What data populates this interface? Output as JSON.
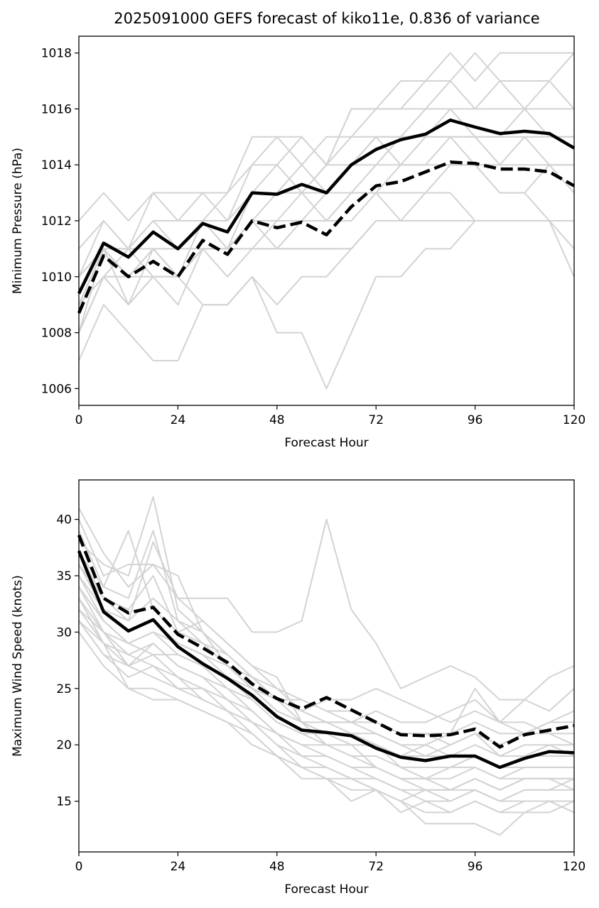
{
  "title": "2025091000 GEFS forecast of kiko11e, 0.836 of variance",
  "colors": {
    "member": "#d3d3d3",
    "mean": "#000000",
    "background": "#ffffff"
  },
  "chart_data": [
    {
      "type": "line",
      "xlabel": "Forecast Hour",
      "ylabel": "Minimum Pressure (hPa)",
      "xlim": [
        0,
        120
      ],
      "ylim": [
        1005.4,
        1018.6
      ],
      "xticks": [
        0,
        24,
        48,
        72,
        96,
        120
      ],
      "xtick_labels": [
        "0",
        "24",
        "48",
        "72",
        "96",
        "120"
      ],
      "yticks": [
        1006,
        1008,
        1010,
        1012,
        1014,
        1016,
        1018
      ],
      "ytick_labels": [
        "1006",
        "1008",
        "1010",
        "1012",
        "1014",
        "1016",
        "1018"
      ],
      "grid": false,
      "x": [
        0,
        6,
        12,
        18,
        24,
        30,
        36,
        42,
        48,
        54,
        60,
        66,
        72,
        78,
        84,
        90,
        96,
        102,
        108,
        114,
        120
      ],
      "members": [
        [
          1012,
          1013,
          1012,
          1013,
          1013,
          1013,
          1013,
          1015,
          1015,
          1015,
          1014,
          1016,
          1016,
          1016,
          1017,
          1018,
          1017,
          1018,
          1018,
          1018,
          1018
        ],
        [
          1011,
          1012,
          1011,
          1013,
          1012,
          1013,
          1012,
          1014,
          1015,
          1014,
          1015,
          1015,
          1016,
          1017,
          1017,
          1017,
          1018,
          1017,
          1017,
          1017,
          1018
        ],
        [
          1010,
          1012,
          1011,
          1012,
          1012,
          1012,
          1013,
          1014,
          1014,
          1015,
          1014,
          1016,
          1016,
          1016,
          1016,
          1017,
          1016,
          1017,
          1016,
          1017,
          1016
        ],
        [
          1010,
          1011,
          1011,
          1012,
          1011,
          1012,
          1012,
          1013,
          1014,
          1013,
          1014,
          1015,
          1015,
          1015,
          1016,
          1016,
          1016,
          1016,
          1016,
          1016,
          1016
        ],
        [
          1010,
          1011,
          1010,
          1011,
          1011,
          1012,
          1011,
          1013,
          1013,
          1014,
          1013,
          1014,
          1015,
          1015,
          1015,
          1016,
          1015,
          1015,
          1016,
          1015,
          1015
        ],
        [
          1009,
          1011,
          1010,
          1011,
          1010,
          1012,
          1011,
          1013,
          1013,
          1013,
          1014,
          1014,
          1015,
          1014,
          1015,
          1015,
          1015,
          1015,
          1015,
          1015,
          1015
        ],
        [
          1009,
          1011,
          1011,
          1011,
          1011,
          1011,
          1011,
          1012,
          1013,
          1013,
          1013,
          1014,
          1014,
          1015,
          1015,
          1015,
          1015,
          1014,
          1015,
          1014,
          1014
        ],
        [
          1009,
          1010,
          1010,
          1011,
          1010,
          1011,
          1011,
          1012,
          1012,
          1013,
          1012,
          1013,
          1014,
          1014,
          1014,
          1014,
          1014,
          1014,
          1014,
          1014,
          1014
        ],
        [
          1009,
          1011,
          1010,
          1010,
          1010,
          1011,
          1011,
          1012,
          1012,
          1012,
          1013,
          1013,
          1013,
          1014,
          1014,
          1015,
          1014,
          1013,
          1013,
          1014,
          1013
        ],
        [
          1009,
          1010,
          1010,
          1011,
          1010,
          1011,
          1010,
          1011,
          1012,
          1012,
          1012,
          1013,
          1013,
          1013,
          1013,
          1014,
          1014,
          1013,
          1013,
          1012,
          1012
        ],
        [
          1008,
          1010,
          1011,
          1010,
          1010,
          1011,
          1011,
          1011,
          1011,
          1011,
          1011,
          1011,
          1012,
          1012,
          1012,
          1012,
          1012,
          1012,
          1012,
          1012,
          1011
        ],
        [
          1008,
          1011,
          1009,
          1011,
          1010,
          1011,
          1011,
          1012,
          1011,
          1012,
          1012,
          1012,
          1013,
          1012,
          1013,
          1013,
          1012,
          1012,
          1012,
          1012,
          1012
        ],
        [
          1008,
          1010,
          1009,
          1010,
          1009,
          1011,
          1011,
          1011,
          1011,
          1011,
          1011,
          1011,
          1012,
          1012,
          1012,
          1012,
          1012,
          1012,
          1012,
          1012,
          1010
        ],
        [
          1007,
          1009,
          1008,
          1007,
          1007,
          1009,
          1009,
          1010,
          1009,
          1010,
          1010,
          1011,
          1012,
          1012,
          1012,
          1012,
          1012,
          1012,
          1012,
          1012,
          1012
        ],
        [
          1008,
          1010,
          1009,
          1010,
          1010,
          1009,
          1009,
          1010,
          1008,
          1008,
          1006,
          1008,
          1010,
          1010,
          1011,
          1011,
          1012,
          1012,
          1012,
          1012,
          1012
        ]
      ],
      "mean": [
        1009.4,
        1011.2,
        1010.7,
        1011.6,
        1011.0,
        1011.9,
        1011.6,
        1013.0,
        1012.95,
        1013.3,
        1013.0,
        1014.0,
        1014.55,
        1014.9,
        1015.1,
        1015.6,
        1015.35,
        1015.12,
        1015.2,
        1015.12,
        1014.6
      ],
      "dashed": [
        1008.7,
        1010.75,
        1010.0,
        1010.55,
        1010.0,
        1011.3,
        1010.8,
        1012.0,
        1011.75,
        1011.95,
        1011.5,
        1012.5,
        1013.25,
        1013.4,
        1013.75,
        1014.1,
        1014.05,
        1013.85,
        1013.85,
        1013.75,
        1013.25
      ]
    },
    {
      "type": "line",
      "xlabel": "Forecast Hour",
      "ylabel": "Maximum Wind Speed (knots)",
      "xlim": [
        0,
        120
      ],
      "ylim": [
        10.5,
        43.5
      ],
      "xticks": [
        0,
        24,
        48,
        72,
        96,
        120
      ],
      "xtick_labels": [
        "0",
        "24",
        "48",
        "72",
        "96",
        "120"
      ],
      "yticks": [
        15,
        20,
        25,
        30,
        35,
        40
      ],
      "ytick_labels": [
        "15",
        "20",
        "25",
        "30",
        "35",
        "40"
      ],
      "grid": false,
      "x": [
        0,
        6,
        12,
        18,
        24,
        30,
        36,
        42,
        48,
        54,
        60,
        66,
        72,
        78,
        84,
        90,
        96,
        102,
        108,
        114,
        120
      ],
      "members": [
        [
          41,
          37,
          34,
          36,
          35,
          30,
          28,
          26,
          24,
          23,
          24,
          24,
          25,
          24,
          23,
          22,
          23,
          22,
          22,
          21,
          20
        ],
        [
          40,
          35,
          36,
          36,
          33,
          33,
          33,
          30,
          30,
          31,
          40,
          32,
          29,
          25,
          26,
          27,
          26,
          24,
          24,
          26,
          27
        ],
        [
          39,
          34,
          39,
          32,
          30,
          29,
          28,
          26,
          25,
          24,
          23,
          22,
          22,
          21,
          21,
          21,
          25,
          22,
          24,
          23,
          25
        ],
        [
          38,
          36,
          35,
          42,
          32,
          30,
          27,
          25,
          24,
          23,
          22,
          22,
          23,
          22,
          22,
          23,
          24,
          22,
          21,
          22,
          23
        ],
        [
          37,
          33,
          31,
          38,
          33,
          31,
          29,
          27,
          26,
          22,
          22,
          21,
          21,
          20,
          20,
          21,
          22,
          21,
          21,
          22,
          22
        ],
        [
          37,
          34,
          33,
          39,
          31,
          30,
          28,
          26,
          24,
          24,
          23,
          23,
          22,
          21,
          21,
          20,
          21,
          20,
          21,
          21,
          21
        ],
        [
          36,
          33,
          32,
          35,
          30,
          31,
          29,
          27,
          25,
          23,
          22,
          22,
          21,
          20,
          19,
          20,
          21,
          19,
          20,
          20,
          20
        ],
        [
          36,
          32,
          30,
          31,
          29,
          28,
          27,
          25,
          23,
          22,
          21,
          20,
          20,
          19,
          20,
          19,
          20,
          19,
          19,
          20,
          19
        ],
        [
          35,
          31,
          29,
          30,
          28,
          27,
          26,
          24,
          22,
          21,
          21,
          20,
          20,
          19,
          19,
          19,
          19,
          18,
          19,
          19,
          19
        ],
        [
          35,
          32,
          31,
          33,
          31,
          29,
          27,
          26,
          24,
          22,
          21,
          21,
          20,
          18,
          18,
          18,
          19,
          18,
          18,
          18,
          18
        ],
        [
          34,
          30,
          28,
          29,
          27,
          26,
          25,
          24,
          22,
          21,
          20,
          19,
          19,
          18,
          17,
          18,
          18,
          17,
          18,
          18,
          18
        ],
        [
          34,
          31,
          29,
          30,
          29,
          28,
          26,
          25,
          23,
          22,
          20,
          20,
          18,
          17,
          17,
          17,
          18,
          17,
          17,
          17,
          17
        ],
        [
          33,
          30,
          29,
          28,
          28,
          27,
          25,
          23,
          21,
          20,
          20,
          19,
          18,
          17,
          17,
          16,
          17,
          16,
          17,
          17,
          16
        ],
        [
          33,
          29,
          27,
          28,
          26,
          25,
          24,
          22,
          21,
          20,
          19,
          18,
          18,
          17,
          16,
          16,
          16,
          15,
          16,
          16,
          16
        ],
        [
          32,
          30,
          27,
          29,
          27,
          26,
          24,
          23,
          21,
          19,
          19,
          18,
          17,
          16,
          15,
          15,
          16,
          15,
          15,
          15,
          15
        ],
        [
          32,
          29,
          28,
          27,
          25,
          25,
          23,
          22,
          20,
          19,
          18,
          17,
          16,
          15,
          14,
          14,
          15,
          14,
          14,
          15,
          14
        ],
        [
          31,
          28,
          26,
          27,
          26,
          24,
          23,
          21,
          19,
          18,
          17,
          16,
          16,
          15,
          13,
          13,
          13,
          12,
          14,
          14,
          15
        ],
        [
          31,
          29,
          25,
          25,
          24,
          23,
          22,
          21,
          19,
          17,
          17,
          15,
          16,
          14,
          15,
          14,
          15,
          14,
          15,
          15,
          14
        ],
        [
          30,
          27,
          25,
          24,
          24,
          23,
          22,
          20,
          19,
          18,
          17,
          17,
          16,
          15,
          16,
          15,
          16,
          15,
          16,
          16,
          17
        ],
        [
          31,
          28,
          27,
          26,
          25,
          24,
          23,
          22,
          20,
          18,
          18,
          17,
          17,
          16,
          16,
          16,
          17,
          16,
          17,
          17,
          17
        ]
      ],
      "mean": [
        37.2,
        31.8,
        30.1,
        31.1,
        28.7,
        27.2,
        25.9,
        24.4,
        22.5,
        21.3,
        21.1,
        20.8,
        19.7,
        18.9,
        18.6,
        19.0,
        19.0,
        18.0,
        18.8,
        19.4,
        19.3
      ],
      "dashed": [
        38.6,
        33.0,
        31.7,
        32.2,
        29.8,
        28.6,
        27.3,
        25.4,
        24.1,
        23.2,
        24.2,
        23.1,
        22.0,
        20.9,
        20.8,
        20.9,
        21.4,
        19.8,
        20.9,
        21.3,
        21.7
      ]
    }
  ]
}
